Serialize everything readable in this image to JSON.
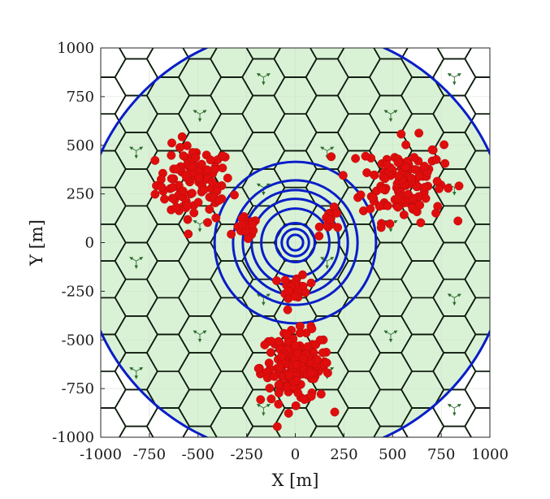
{
  "chart_data": {
    "type": "scatter",
    "title": "",
    "xlabel": "X [m]",
    "ylabel": "Y [m]",
    "xlim": [
      -1000,
      1000
    ],
    "ylim": [
      -1000,
      1000
    ],
    "xticks": [
      -1000,
      -750,
      -500,
      -250,
      0,
      250,
      500,
      750,
      1000
    ],
    "yticks": [
      -1000,
      -750,
      -500,
      -250,
      0,
      250,
      500,
      750,
      1000
    ],
    "grid": true,
    "legend": "none",
    "colors": {
      "coverage_fill": "#d9f2d6",
      "hex_edge": "#0d1a0d",
      "sector_arrow": "#2e6b2e",
      "ring": "#0a1ec8",
      "users": "#e00d0d",
      "grid": "#cfe0cc"
    },
    "hex_grid": {
      "radius": 109,
      "center": [
        0,
        0
      ]
    },
    "coverage_circle": {
      "center": [
        0,
        0
      ],
      "radius": 1100
    },
    "rings": [
      {
        "center": [
          0,
          0
        ],
        "radius": 40
      },
      {
        "center": [
          0,
          0
        ],
        "radius": 70
      },
      {
        "center": [
          0,
          0
        ],
        "radius": 100
      },
      {
        "center": [
          0,
          0
        ],
        "radius": 175
      },
      {
        "center": [
          0,
          0
        ],
        "radius": 225
      },
      {
        "center": [
          0,
          0
        ],
        "radius": 270
      },
      {
        "center": [
          0,
          0
        ],
        "radius": 320
      },
      {
        "center": [
          0,
          0
        ],
        "radius": 415
      }
    ],
    "user_clusters": [
      {
        "center": [
          -520,
          300
        ],
        "spread": 130,
        "count": 105
      },
      {
        "center": [
          550,
          320
        ],
        "spread": 140,
        "count": 140
      },
      {
        "center": [
          0,
          -640
        ],
        "spread": 120,
        "count": 170
      },
      {
        "center": [
          -250,
          70
        ],
        "spread": 40,
        "count": 18
      },
      {
        "center": [
          190,
          110
        ],
        "spread": 40,
        "count": 14
      },
      {
        "center": [
          0,
          -230
        ],
        "spread": 45,
        "count": 28
      }
    ]
  }
}
